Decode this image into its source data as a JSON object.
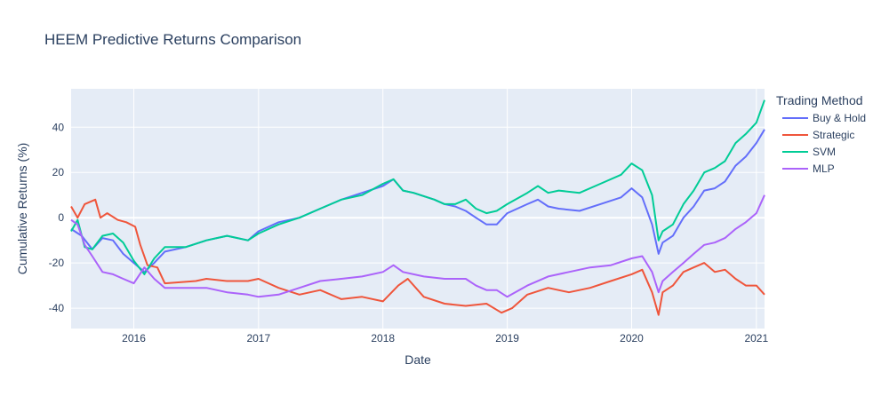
{
  "chart_data": {
    "type": "line",
    "title": "HEEM Predictive Returns Comparison",
    "xlabel": "Date",
    "ylabel": "Cumulative Returns (%)",
    "x_range": [
      "2015-07-01",
      "2021-01-25"
    ],
    "ylim": [
      -49,
      57
    ],
    "x_ticks": [
      "2016",
      "2017",
      "2018",
      "2019",
      "2020",
      "2021"
    ],
    "y_ticks": [
      -40,
      -20,
      0,
      20,
      40
    ],
    "grid": true,
    "plot_background": "#e5ecf6",
    "legend": {
      "title": "Trading Method",
      "placement": "top-right, outside plot"
    },
    "series": [
      {
        "name": "Buy & Hold",
        "color": "#636efa",
        "points": [
          [
            "2015-07-01",
            -5
          ],
          [
            "2015-08-01",
            -8
          ],
          [
            "2015-09-01",
            -14
          ],
          [
            "2015-10-01",
            -9
          ],
          [
            "2015-11-01",
            -10
          ],
          [
            "2015-12-01",
            -16
          ],
          [
            "2016-01-01",
            -20
          ],
          [
            "2016-02-01",
            -24
          ],
          [
            "2016-03-01",
            -20
          ],
          [
            "2016-04-01",
            -15
          ],
          [
            "2016-06-01",
            -13
          ],
          [
            "2016-08-01",
            -10
          ],
          [
            "2016-10-01",
            -8
          ],
          [
            "2016-12-01",
            -10
          ],
          [
            "2017-01-01",
            -6
          ],
          [
            "2017-03-01",
            -2
          ],
          [
            "2017-05-01",
            0
          ],
          [
            "2017-07-01",
            4
          ],
          [
            "2017-09-01",
            8
          ],
          [
            "2017-11-01",
            11
          ],
          [
            "2018-01-01",
            14
          ],
          [
            "2018-02-01",
            17
          ],
          [
            "2018-03-01",
            12
          ],
          [
            "2018-04-01",
            11
          ],
          [
            "2018-06-01",
            8
          ],
          [
            "2018-07-01",
            6
          ],
          [
            "2018-08-01",
            5
          ],
          [
            "2018-09-01",
            3
          ],
          [
            "2018-10-01",
            0
          ],
          [
            "2018-11-01",
            -3
          ],
          [
            "2018-12-01",
            -3
          ],
          [
            "2019-01-01",
            2
          ],
          [
            "2019-03-01",
            6
          ],
          [
            "2019-04-01",
            8
          ],
          [
            "2019-05-01",
            5
          ],
          [
            "2019-06-01",
            4
          ],
          [
            "2019-08-01",
            3
          ],
          [
            "2019-10-01",
            6
          ],
          [
            "2019-12-01",
            9
          ],
          [
            "2020-01-01",
            13
          ],
          [
            "2020-02-01",
            9
          ],
          [
            "2020-03-01",
            -3
          ],
          [
            "2020-03-20",
            -16
          ],
          [
            "2020-04-01",
            -11
          ],
          [
            "2020-05-01",
            -8
          ],
          [
            "2020-06-01",
            0
          ],
          [
            "2020-07-01",
            5
          ],
          [
            "2020-08-01",
            12
          ],
          [
            "2020-09-01",
            13
          ],
          [
            "2020-10-01",
            16
          ],
          [
            "2020-11-01",
            23
          ],
          [
            "2020-12-01",
            27
          ],
          [
            "2021-01-01",
            33
          ],
          [
            "2021-01-25",
            39
          ]
        ]
      },
      {
        "name": "Strategic",
        "color": "#ef553b",
        "points": [
          [
            "2015-07-01",
            5
          ],
          [
            "2015-07-20",
            0
          ],
          [
            "2015-08-10",
            6
          ],
          [
            "2015-09-10",
            8
          ],
          [
            "2015-09-25",
            0
          ],
          [
            "2015-10-15",
            2
          ],
          [
            "2015-11-15",
            -1
          ],
          [
            "2015-12-10",
            -2
          ],
          [
            "2016-01-05",
            -4
          ],
          [
            "2016-01-20",
            -12
          ],
          [
            "2016-02-10",
            -21
          ],
          [
            "2016-03-10",
            -22
          ],
          [
            "2016-04-01",
            -29
          ],
          [
            "2016-07-01",
            -28
          ],
          [
            "2016-08-01",
            -27
          ],
          [
            "2016-10-01",
            -28
          ],
          [
            "2016-12-01",
            -28
          ],
          [
            "2017-01-01",
            -27
          ],
          [
            "2017-03-01",
            -31
          ],
          [
            "2017-05-01",
            -34
          ],
          [
            "2017-07-01",
            -32
          ],
          [
            "2017-09-01",
            -36
          ],
          [
            "2017-11-01",
            -35
          ],
          [
            "2018-01-01",
            -37
          ],
          [
            "2018-02-15",
            -30
          ],
          [
            "2018-03-15",
            -27
          ],
          [
            "2018-05-01",
            -35
          ],
          [
            "2018-07-01",
            -38
          ],
          [
            "2018-09-01",
            -39
          ],
          [
            "2018-11-01",
            -38
          ],
          [
            "2018-12-15",
            -42
          ],
          [
            "2019-01-15",
            -40
          ],
          [
            "2019-03-01",
            -34
          ],
          [
            "2019-05-01",
            -31
          ],
          [
            "2019-07-01",
            -33
          ],
          [
            "2019-09-01",
            -31
          ],
          [
            "2019-11-01",
            -28
          ],
          [
            "2020-01-01",
            -25
          ],
          [
            "2020-02-01",
            -23
          ],
          [
            "2020-03-01",
            -33
          ],
          [
            "2020-03-20",
            -43
          ],
          [
            "2020-04-01",
            -33
          ],
          [
            "2020-05-01",
            -30
          ],
          [
            "2020-06-01",
            -24
          ],
          [
            "2020-07-01",
            -22
          ],
          [
            "2020-08-01",
            -20
          ],
          [
            "2020-09-01",
            -24
          ],
          [
            "2020-10-01",
            -23
          ],
          [
            "2020-11-01",
            -27
          ],
          [
            "2020-12-01",
            -30
          ],
          [
            "2021-01-01",
            -30
          ],
          [
            "2021-01-25",
            -34
          ]
        ]
      },
      {
        "name": "SVM",
        "color": "#00cc96",
        "points": [
          [
            "2015-07-01",
            -6
          ],
          [
            "2015-07-20",
            -1
          ],
          [
            "2015-08-10",
            -13
          ],
          [
            "2015-09-01",
            -14
          ],
          [
            "2015-10-01",
            -8
          ],
          [
            "2015-11-01",
            -7
          ],
          [
            "2015-12-01",
            -11
          ],
          [
            "2016-01-01",
            -19
          ],
          [
            "2016-02-01",
            -25
          ],
          [
            "2016-03-01",
            -18
          ],
          [
            "2016-04-01",
            -13
          ],
          [
            "2016-06-01",
            -13
          ],
          [
            "2016-08-01",
            -10
          ],
          [
            "2016-10-01",
            -8
          ],
          [
            "2016-12-01",
            -10
          ],
          [
            "2017-01-01",
            -7
          ],
          [
            "2017-03-01",
            -3
          ],
          [
            "2017-05-01",
            0
          ],
          [
            "2017-07-01",
            4
          ],
          [
            "2017-09-01",
            8
          ],
          [
            "2017-11-01",
            10
          ],
          [
            "2018-01-01",
            15
          ],
          [
            "2018-02-01",
            17
          ],
          [
            "2018-03-01",
            12
          ],
          [
            "2018-04-01",
            11
          ],
          [
            "2018-06-01",
            8
          ],
          [
            "2018-07-01",
            6
          ],
          [
            "2018-08-01",
            6
          ],
          [
            "2018-09-01",
            8
          ],
          [
            "2018-10-01",
            4
          ],
          [
            "2018-11-01",
            2
          ],
          [
            "2018-12-01",
            3
          ],
          [
            "2019-01-01",
            6
          ],
          [
            "2019-03-01",
            11
          ],
          [
            "2019-04-01",
            14
          ],
          [
            "2019-05-01",
            11
          ],
          [
            "2019-06-01",
            12
          ],
          [
            "2019-08-01",
            11
          ],
          [
            "2019-10-01",
            15
          ],
          [
            "2019-12-01",
            19
          ],
          [
            "2020-01-01",
            24
          ],
          [
            "2020-02-01",
            21
          ],
          [
            "2020-03-01",
            10
          ],
          [
            "2020-03-20",
            -10
          ],
          [
            "2020-04-01",
            -6
          ],
          [
            "2020-05-01",
            -3
          ],
          [
            "2020-06-01",
            6
          ],
          [
            "2020-07-01",
            12
          ],
          [
            "2020-08-01",
            20
          ],
          [
            "2020-09-01",
            22
          ],
          [
            "2020-10-01",
            25
          ],
          [
            "2020-11-01",
            33
          ],
          [
            "2020-12-01",
            37
          ],
          [
            "2021-01-01",
            42
          ],
          [
            "2021-01-25",
            52
          ]
        ]
      },
      {
        "name": "MLP",
        "color": "#ab63fa",
        "points": [
          [
            "2015-07-01",
            -1
          ],
          [
            "2015-07-20",
            -3
          ],
          [
            "2015-08-10",
            -12
          ],
          [
            "2015-09-01",
            -17
          ],
          [
            "2015-10-01",
            -24
          ],
          [
            "2015-11-01",
            -25
          ],
          [
            "2015-12-01",
            -27
          ],
          [
            "2016-01-01",
            -29
          ],
          [
            "2016-02-01",
            -22
          ],
          [
            "2016-03-01",
            -27
          ],
          [
            "2016-04-01",
            -31
          ],
          [
            "2016-06-01",
            -31
          ],
          [
            "2016-08-01",
            -31
          ],
          [
            "2016-10-01",
            -33
          ],
          [
            "2016-12-01",
            -34
          ],
          [
            "2017-01-01",
            -35
          ],
          [
            "2017-03-01",
            -34
          ],
          [
            "2017-05-01",
            -31
          ],
          [
            "2017-07-01",
            -28
          ],
          [
            "2017-09-01",
            -27
          ],
          [
            "2017-11-01",
            -26
          ],
          [
            "2018-01-01",
            -24
          ],
          [
            "2018-02-01",
            -21
          ],
          [
            "2018-03-01",
            -24
          ],
          [
            "2018-05-01",
            -26
          ],
          [
            "2018-07-01",
            -27
          ],
          [
            "2018-09-01",
            -27
          ],
          [
            "2018-10-01",
            -30
          ],
          [
            "2018-11-01",
            -32
          ],
          [
            "2018-12-01",
            -32
          ],
          [
            "2019-01-01",
            -35
          ],
          [
            "2019-03-01",
            -30
          ],
          [
            "2019-05-01",
            -26
          ],
          [
            "2019-07-01",
            -24
          ],
          [
            "2019-09-01",
            -22
          ],
          [
            "2019-11-01",
            -21
          ],
          [
            "2020-01-01",
            -18
          ],
          [
            "2020-02-01",
            -17
          ],
          [
            "2020-03-01",
            -24
          ],
          [
            "2020-03-20",
            -33
          ],
          [
            "2020-04-01",
            -28
          ],
          [
            "2020-05-01",
            -24
          ],
          [
            "2020-06-01",
            -20
          ],
          [
            "2020-07-01",
            -16
          ],
          [
            "2020-08-01",
            -12
          ],
          [
            "2020-09-01",
            -11
          ],
          [
            "2020-10-01",
            -9
          ],
          [
            "2020-11-01",
            -5
          ],
          [
            "2020-12-01",
            -2
          ],
          [
            "2021-01-01",
            2
          ],
          [
            "2021-01-25",
            10
          ]
        ]
      }
    ]
  }
}
